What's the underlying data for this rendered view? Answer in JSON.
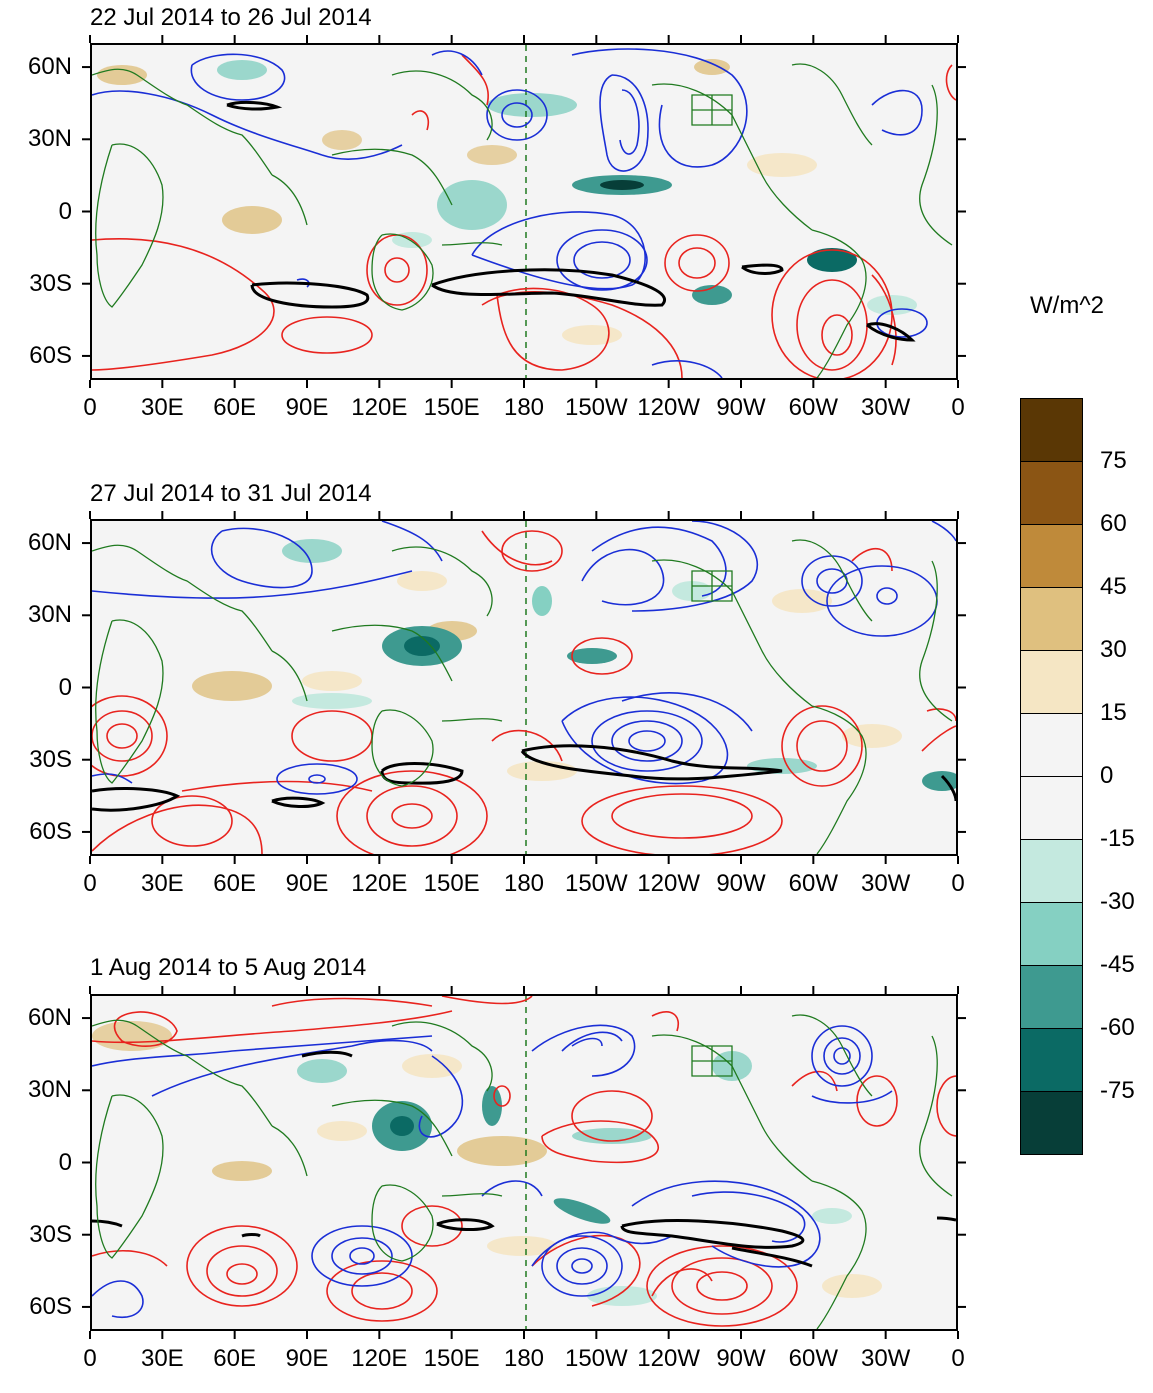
{
  "panels": [
    {
      "title": "22 Jul 2014 to 26 Jul 2014"
    },
    {
      "title": "27 Jul 2014 to 31 Jul 2014"
    },
    {
      "title": "1 Aug 2014 to 5 Aug 2014"
    }
  ],
  "lat_labels": [
    "60N",
    "30N",
    "0",
    "30S",
    "60S"
  ],
  "lon_labels": [
    "0",
    "30E",
    "60E",
    "90E",
    "120E",
    "150E",
    "180",
    "150W",
    "120W",
    "90W",
    "60W",
    "30W",
    "0"
  ],
  "colorbar": {
    "units": "W/m^2",
    "labels": [
      "75",
      "60",
      "45",
      "30",
      "15",
      "0",
      "-15",
      "-30",
      "-45",
      "-60",
      "-75"
    ],
    "colors": [
      "#5a3705",
      "#8b5514",
      "#bf8a3a",
      "#dfc07f",
      "#f5e6c4",
      "#f4f4f4",
      "#f4f4f4",
      "#c4e9df",
      "#85d0c2",
      "#3e9a90",
      "#0b6a64",
      "#073e38"
    ]
  },
  "colors": {
    "coast": "#1f7a1f",
    "contour_positive": "#e8231e",
    "contour_negative": "#1a2ed6",
    "contour_zero": "#000000",
    "dateline": "#1f7a1f"
  }
}
